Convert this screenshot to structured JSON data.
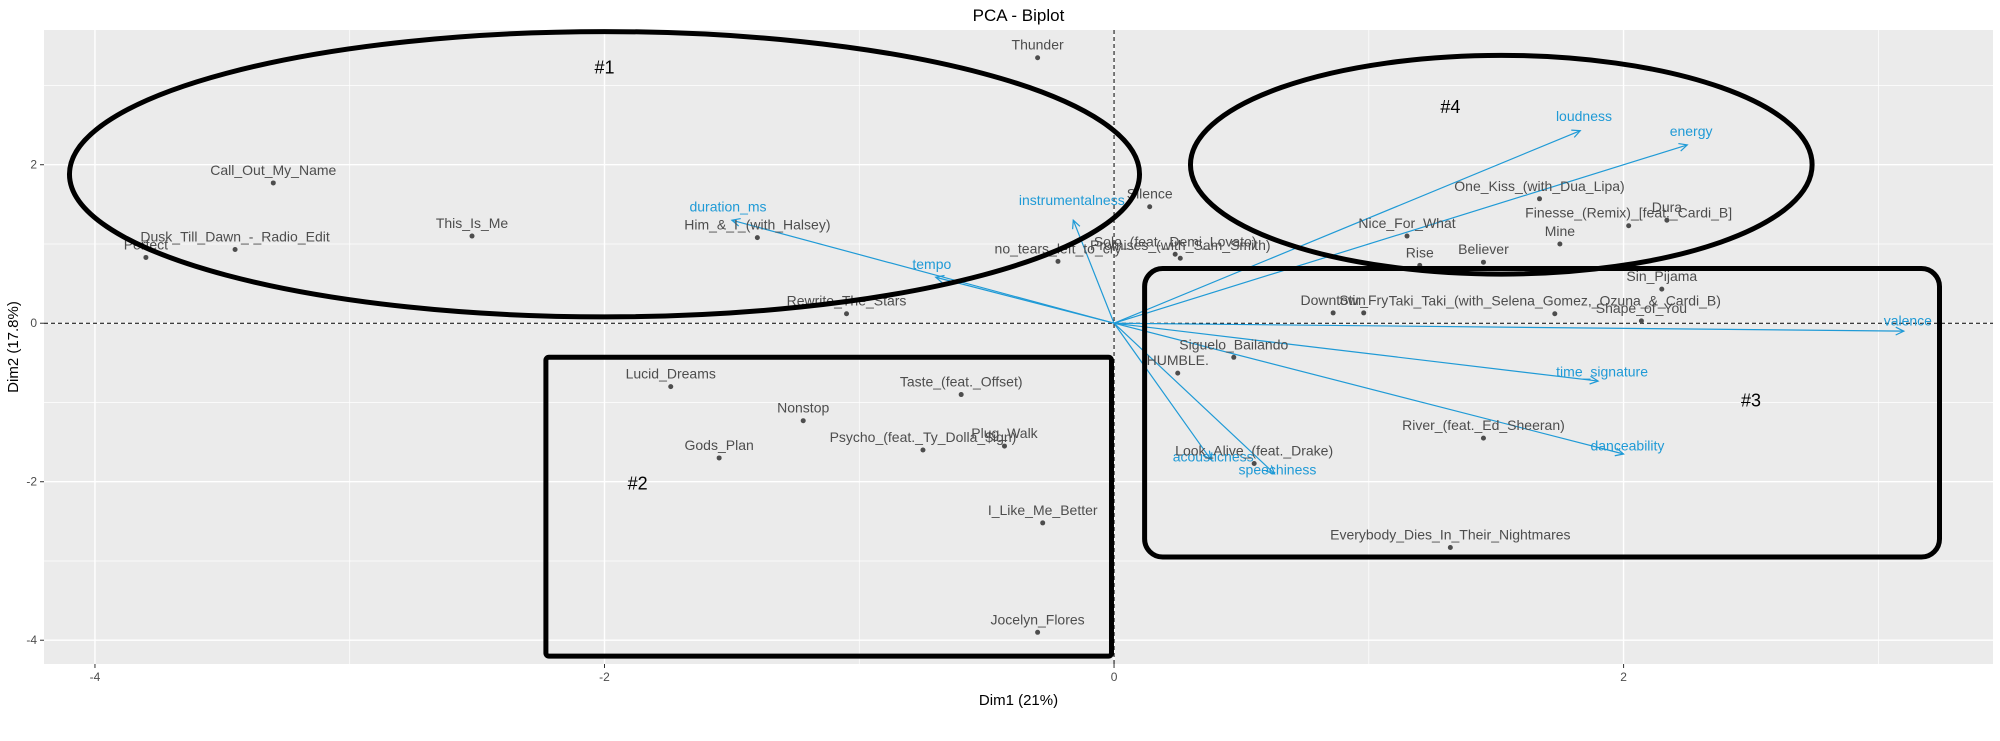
{
  "chart_data": {
    "type": "scatter",
    "title": "PCA - Biplot",
    "xlabel": "Dim1 (21%)",
    "ylabel": "Dim2 (17.8%)",
    "xlim": [
      -4.2,
      3.45
    ],
    "ylim": [
      -4.3,
      3.7
    ],
    "x_ticks": [
      -4,
      -2,
      0,
      2
    ],
    "y_ticks": [
      -4,
      -2,
      0,
      2
    ],
    "grid": true,
    "reference_lines": {
      "x": 0,
      "y": 0
    },
    "points": [
      {
        "label": "Thunder",
        "x": -0.3,
        "y": 3.35
      },
      {
        "label": "Call_Out_My_Name",
        "x": -3.3,
        "y": 1.77
      },
      {
        "label": "Dusk_Till_Dawn_-_Radio_Edit",
        "x": -3.45,
        "y": 0.93
      },
      {
        "label": "Perfect",
        "x": -3.8,
        "y": 0.83
      },
      {
        "label": "This_Is_Me",
        "x": -2.52,
        "y": 1.1
      },
      {
        "label": "Him_&_I_(with_Halsey)",
        "x": -1.4,
        "y": 1.08
      },
      {
        "label": "Rewrite_The_Stars",
        "x": -1.05,
        "y": 0.12
      },
      {
        "label": "Silence",
        "x": 0.14,
        "y": 1.47
      },
      {
        "label": "no_tears_left_to_cry",
        "x": -0.22,
        "y": 0.78
      },
      {
        "label": "Solo_(feat._Demi_Lovato)",
        "x": 0.24,
        "y": 0.87
      },
      {
        "label": "Promises_(with_Sam_Smith)",
        "x": 0.26,
        "y": 0.82
      },
      {
        "label": "One_Kiss_(with_Dua_Lipa)",
        "x": 1.67,
        "y": 1.57
      },
      {
        "label": "Nice_For_What",
        "x": 1.15,
        "y": 1.1
      },
      {
        "label": "Dura",
        "x": 2.17,
        "y": 1.3
      },
      {
        "label": "Finesse_(Remix)_[feat._Cardi_B]",
        "x": 2.02,
        "y": 1.23
      },
      {
        "label": "Mine",
        "x": 1.75,
        "y": 1.0
      },
      {
        "label": "Rise",
        "x": 1.2,
        "y": 0.73
      },
      {
        "label": "Believer",
        "x": 1.45,
        "y": 0.77
      },
      {
        "label": "Sin_Pijama",
        "x": 2.15,
        "y": 0.43
      },
      {
        "label": "Downtown",
        "x": 0.86,
        "y": 0.13
      },
      {
        "label": "Stir_Fry",
        "x": 0.98,
        "y": 0.13
      },
      {
        "label": "Taki_Taki_(with_Selena_Gomez,_Ozuna_&_Cardi_B)",
        "x": 1.73,
        "y": 0.12
      },
      {
        "label": "Shape_of_You",
        "x": 2.07,
        "y": 0.03
      },
      {
        "label": "Siguelo_Bailando",
        "x": 0.47,
        "y": -0.43
      },
      {
        "label": "HUMBLE.",
        "x": 0.25,
        "y": -0.63
      },
      {
        "label": "River_(feat._Ed_Sheeran)",
        "x": 1.45,
        "y": -1.45
      },
      {
        "label": "Look_Alive_(feat._Drake)",
        "x": 0.55,
        "y": -1.77
      },
      {
        "label": "Everybody_Dies_In_Their_Nightmares",
        "x": 1.32,
        "y": -2.83
      },
      {
        "label": "Lucid_Dreams",
        "x": -1.74,
        "y": -0.8
      },
      {
        "label": "Taste_(feat._Offset)",
        "x": -0.6,
        "y": -0.9
      },
      {
        "label": "Nonstop",
        "x": -1.22,
        "y": -1.23
      },
      {
        "label": "Gods_Plan",
        "x": -1.55,
        "y": -1.7
      },
      {
        "label": "Psycho_(feat._Ty_Dolla_$ign)",
        "x": -0.75,
        "y": -1.6
      },
      {
        "label": "Plug_Walk",
        "x": -0.43,
        "y": -1.55
      },
      {
        "label": "I_Like_Me_Better",
        "x": -0.28,
        "y": -2.52
      },
      {
        "label": "Jocelyn_Flores",
        "x": -0.3,
        "y": -3.9
      }
    ],
    "variables": [
      {
        "label": "loudness",
        "x": 1.83,
        "y": 2.43
      },
      {
        "label": "energy",
        "x": 2.25,
        "y": 2.25
      },
      {
        "label": "duration_ms",
        "x": -1.5,
        "y": 1.3
      },
      {
        "label": "instrumentalness",
        "x": -0.16,
        "y": 1.3
      },
      {
        "label": "tempo",
        "x": -0.7,
        "y": 0.58
      },
      {
        "label": "valence",
        "x": 3.1,
        "y": -0.1
      },
      {
        "label": "time_signature",
        "x": 1.9,
        "y": -0.73
      },
      {
        "label": "danceability",
        "x": 2.0,
        "y": -1.65
      },
      {
        "label": "acousticness",
        "x": 0.38,
        "y": -1.72
      },
      {
        "label": "speechiness",
        "x": 0.63,
        "y": -1.9
      }
    ],
    "groups": [
      {
        "label": "#1",
        "shape": "ellipse"
      },
      {
        "label": "#2",
        "shape": "rectangle"
      },
      {
        "label": "#3",
        "shape": "rectangle"
      },
      {
        "label": "#4",
        "shape": "ellipse"
      }
    ],
    "colors": {
      "panel": "#ebebeb",
      "grid": "#ffffff",
      "point": "#4d4d4d",
      "arrow": "#1f9ad6",
      "annotation": "#000000"
    }
  }
}
